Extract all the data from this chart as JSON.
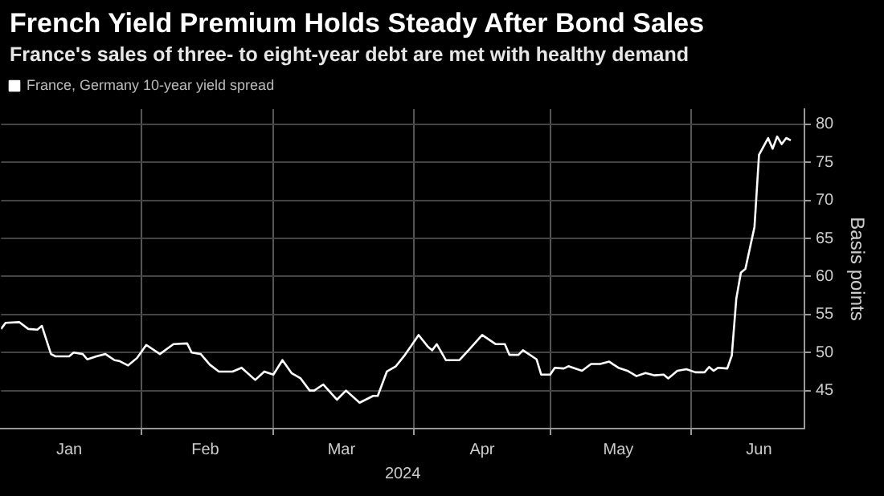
{
  "chart_data": {
    "type": "line",
    "title": "French Yield Premium Holds Steady After Bond Sales",
    "subtitle": "France's sales of three- to eight-year debt are met with healthy demand",
    "xlabel": "2024",
    "ylabel": "Basis points",
    "legend": "top left",
    "grid": true,
    "marker": "none",
    "line_style": "solid",
    "xlim": [
      "2024-01-01",
      "2024-06-26"
    ],
    "xticks": [
      {
        "value": "2024-01-16",
        "label": "Jan"
      },
      {
        "value": "2024-02-01",
        "label": null
      },
      {
        "value": "2024-02-15",
        "label": "Feb"
      },
      {
        "value": "2024-03-01",
        "label": null
      },
      {
        "value": "2024-03-16",
        "label": "Mar"
      },
      {
        "value": "2024-04-01",
        "label": null
      },
      {
        "value": "2024-04-16",
        "label": "Apr"
      },
      {
        "value": "2024-05-01",
        "label": null
      },
      {
        "value": "2024-05-16",
        "label": "May"
      },
      {
        "value": "2024-06-01",
        "label": null
      },
      {
        "value": "2024-06-16",
        "label": "Jun"
      }
    ],
    "ylim": [
      40,
      82
    ],
    "yticks": [
      45,
      50,
      55,
      60,
      65,
      70,
      75,
      80
    ],
    "series": [
      {
        "name": "France, Germany 10-year yield spread",
        "color": "#ffffff",
        "x": [
          "2024-01-01",
          "2024-01-02",
          "2024-01-05",
          "2024-01-07",
          "2024-01-09",
          "2024-01-10",
          "2024-01-12",
          "2024-01-13",
          "2024-01-16",
          "2024-01-17",
          "2024-01-19",
          "2024-01-20",
          "2024-01-22",
          "2024-01-24",
          "2024-01-26",
          "2024-01-27",
          "2024-01-29",
          "2024-01-31",
          "2024-02-02",
          "2024-02-05",
          "2024-02-08",
          "2024-02-11",
          "2024-02-12",
          "2024-02-14",
          "2024-02-16",
          "2024-02-18",
          "2024-02-21",
          "2024-02-23",
          "2024-02-26",
          "2024-02-28",
          "2024-03-01",
          "2024-03-03",
          "2024-03-05",
          "2024-03-07",
          "2024-03-09",
          "2024-03-10",
          "2024-03-12",
          "2024-03-15",
          "2024-03-17",
          "2024-03-20",
          "2024-03-23",
          "2024-03-24",
          "2024-03-26",
          "2024-03-28",
          "2024-03-30",
          "2024-04-02",
          "2024-04-04",
          "2024-04-05",
          "2024-04-06",
          "2024-04-08",
          "2024-04-11",
          "2024-04-13",
          "2024-04-16",
          "2024-04-19",
          "2024-04-21",
          "2024-04-22",
          "2024-04-24",
          "2024-04-25",
          "2024-04-28",
          "2024-04-29",
          "2024-05-01",
          "2024-05-02",
          "2024-05-04",
          "2024-05-05",
          "2024-05-08",
          "2024-05-10",
          "2024-05-12",
          "2024-05-14",
          "2024-05-16",
          "2024-05-18",
          "2024-05-20",
          "2024-05-22",
          "2024-05-24",
          "2024-05-26",
          "2024-05-27",
          "2024-05-29",
          "2024-05-31",
          "2024-06-02",
          "2024-06-04",
          "2024-06-05",
          "2024-06-06",
          "2024-06-07",
          "2024-06-09",
          "2024-06-10",
          "2024-06-11",
          "2024-06-12",
          "2024-06-13",
          "2024-06-15",
          "2024-06-16",
          "2024-06-18",
          "2024-06-19",
          "2024-06-20",
          "2024-06-21",
          "2024-06-22",
          "2024-06-23"
        ],
        "values": [
          53.1,
          53.9,
          54.0,
          53.1,
          53.0,
          53.5,
          49.8,
          49.5,
          49.5,
          50.0,
          49.8,
          49.1,
          49.5,
          49.8,
          49.0,
          48.9,
          48.3,
          49.3,
          51.0,
          49.8,
          51.1,
          51.2,
          50.0,
          49.8,
          48.4,
          47.5,
          47.5,
          48.0,
          46.4,
          47.5,
          47.1,
          49.0,
          47.3,
          46.6,
          45.0,
          45.0,
          45.8,
          43.8,
          45.0,
          43.4,
          44.3,
          44.3,
          47.5,
          48.2,
          49.7,
          52.3,
          50.8,
          50.3,
          51.1,
          49.0,
          49.0,
          50.3,
          52.3,
          51.1,
          51.1,
          49.7,
          49.7,
          50.3,
          49.1,
          47.1,
          47.1,
          48.0,
          47.9,
          48.2,
          47.6,
          48.5,
          48.5,
          48.8,
          48.0,
          47.6,
          46.9,
          47.3,
          47.0,
          47.1,
          46.6,
          47.6,
          47.8,
          47.4,
          47.4,
          48.1,
          47.6,
          48.0,
          47.9,
          49.6,
          57.1,
          60.5,
          61.0,
          66.5,
          76.0,
          78.2,
          76.8,
          78.4,
          77.4,
          78.2,
          77.9
        ]
      }
    ]
  }
}
